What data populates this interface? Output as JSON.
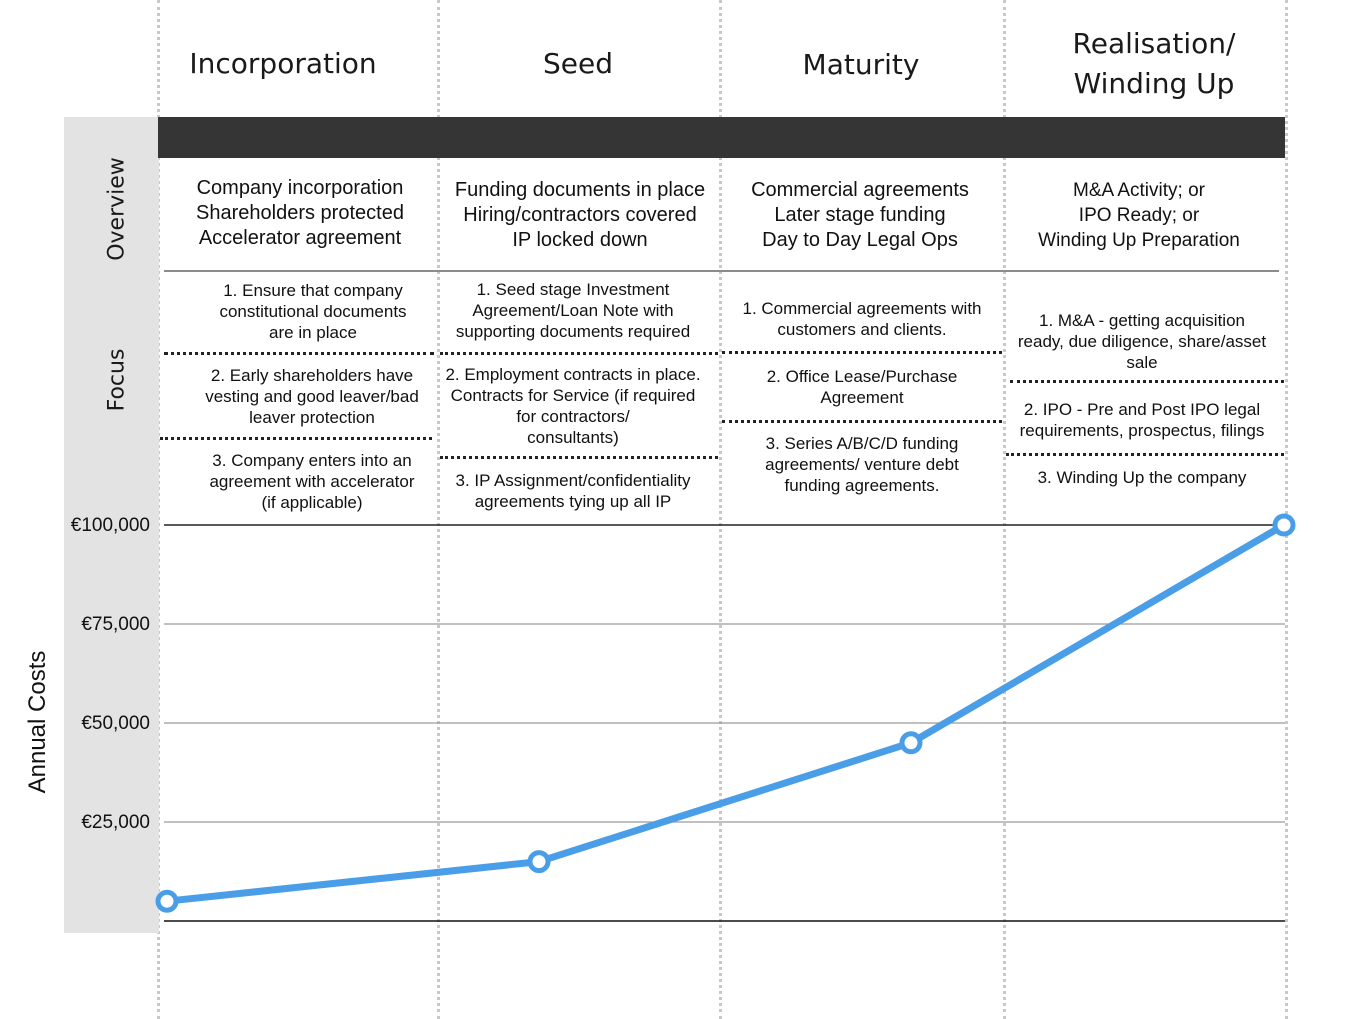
{
  "stages": [
    "Incorporation",
    "Seed",
    "Maturity",
    "Realisation/\nWinding Up"
  ],
  "row_labels": {
    "overview": "Overview",
    "focus": "Focus"
  },
  "overview": [
    "Company incorporation\nShareholders protected\nAccelerator agreement",
    "Funding documents in place\nHiring/contractors covered\nIP locked down",
    "Commercial agreements\nLater stage funding\nDay to Day Legal Ops",
    "M&A Activity; or\nIPO Ready; or\nWinding Up Preparation"
  ],
  "focus": [
    [
      "1. Ensure that company\nconstitutional documents\nare in place",
      "2. Early shareholders have\nvesting and good leaver/bad\nleaver protection",
      "3. Company enters into an\nagreement with accelerator\n(if applicable)"
    ],
    [
      "1. Seed stage Investment\nAgreement/Loan Note with\nsupporting documents required",
      "2. Employment contracts in place.\nContracts for Service (if required\nfor contractors/\nconsultants)",
      "3. IP Assignment/confidentiality\nagreements tying up all IP"
    ],
    [
      "1.    Commercial agreements with\ncustomers and clients.",
      "2. Office Lease/Purchase\nAgreement",
      "3. Series A/B/C/D funding\nagreements/ venture debt\nfunding agreements."
    ],
    [
      "1. M&A - getting acquisition\nready, due diligence, share/asset\nsale",
      "2. IPO - Pre and Post IPO legal\nrequirements, prospectus, filings",
      "3. Winding Up the company"
    ]
  ],
  "chart_data": {
    "type": "line",
    "ylabel": "Annual Costs",
    "xlabel": "",
    "ylim": [
      0,
      100000
    ],
    "y_ticks": [
      25000,
      50000,
      75000,
      100000
    ],
    "y_tick_labels": [
      "€25,000",
      "€50,000",
      "€75,000",
      "€100,000"
    ],
    "x": [
      0,
      1,
      2,
      3
    ],
    "series": [
      {
        "values": [
          5000,
          15000,
          45000,
          100000
        ]
      }
    ],
    "grid": true,
    "line_color": "#4a9ee8"
  }
}
